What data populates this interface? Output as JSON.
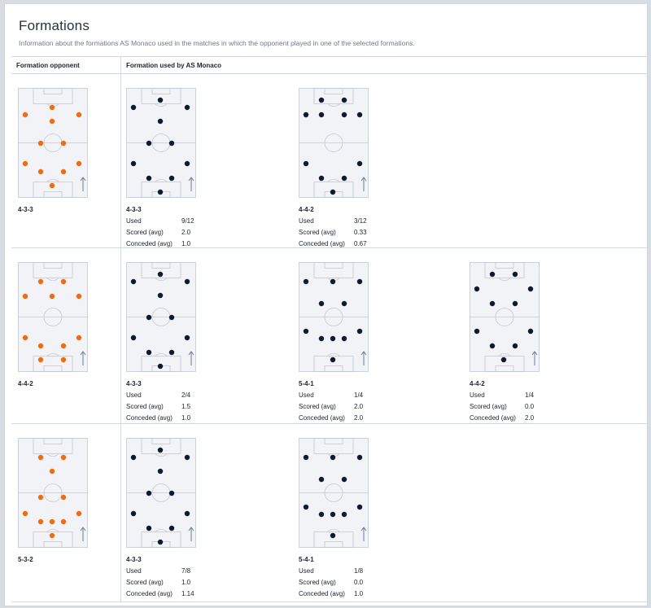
{
  "header": {
    "title": "Formations",
    "subtitle": "Information about the formations AS Monaco used in the matches in which the opponent played in one of the selected formations."
  },
  "columns": {
    "opponent": "Formation opponent",
    "used": "Formation used by AS Monaco"
  },
  "stat_labels": {
    "used": "Used",
    "scored": "Scored (avg)",
    "conceded": "Conceded (avg)"
  },
  "colors": {
    "opponent_dot": "#f26b0f",
    "team_dot": "#0e1a33",
    "pitch_bg": "#f1f3f7",
    "pitch_line": "#c2c9d3"
  },
  "rows": [
    {
      "opponent": {
        "name": "4-3-3",
        "formation": "4-3-3-opp"
      },
      "used": [
        {
          "name": "4-3-3",
          "formation": "4-3-3",
          "used": "9/12",
          "scored": "2.0",
          "conceded": "1.0"
        },
        {
          "name": "4-4-2",
          "formation": "4-4-2",
          "used": "3/12",
          "scored": "0.33",
          "conceded": "0.67"
        }
      ]
    },
    {
      "opponent": {
        "name": "4-4-2",
        "formation": "4-4-2-opp"
      },
      "used": [
        {
          "name": "4-3-3",
          "formation": "4-3-3",
          "used": "2/4",
          "scored": "1.5",
          "conceded": "1.0"
        },
        {
          "name": "5-4-1",
          "formation": "5-4-1",
          "used": "1/4",
          "scored": "2.0",
          "conceded": "2.0"
        },
        {
          "name": "4-4-2",
          "formation": "4-4-2b",
          "used": "1/4",
          "scored": "0.0",
          "conceded": "2.0"
        }
      ]
    },
    {
      "opponent": {
        "name": "5-3-2",
        "formation": "5-3-2-opp"
      },
      "used": [
        {
          "name": "4-3-3",
          "formation": "4-3-3",
          "used": "7/8",
          "scored": "1.0",
          "conceded": "1.14"
        },
        {
          "name": "5-4-1",
          "formation": "5-4-1",
          "used": "1/8",
          "scored": "0.0",
          "conceded": "1.0"
        }
      ]
    }
  ]
}
